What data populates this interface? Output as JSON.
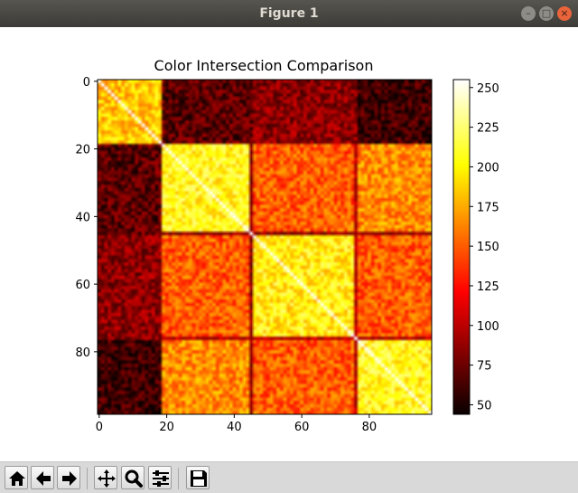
{
  "window": {
    "title": "Figure 1"
  },
  "chart_data": {
    "type": "heatmap",
    "title": "Color Intersection Comparison",
    "xlabel": "",
    "ylabel": "",
    "size": 99,
    "x_ticks": [
      "0",
      "20",
      "40",
      "60",
      "80"
    ],
    "y_ticks": [
      "0",
      "20",
      "40",
      "60",
      "80"
    ],
    "colormap": "hot",
    "vmin": 44,
    "vmax": 255,
    "colorbar_ticks": [
      "50",
      "75",
      "100",
      "125",
      "150",
      "175",
      "200",
      "225",
      "250"
    ],
    "blocks": [
      {
        "range": [
          0,
          18
        ],
        "within_value": 185
      },
      {
        "range": [
          19,
          45
        ],
        "within_value": 205
      },
      {
        "range": [
          46,
          76
        ],
        "within_value": 200
      },
      {
        "range": [
          77,
          98
        ],
        "within_value": 205
      }
    ],
    "between_values": [
      [
        0,
        70,
        85,
        60
      ],
      [
        70,
        0,
        150,
        165
      ],
      [
        85,
        150,
        0,
        150
      ],
      [
        60,
        165,
        150,
        0
      ]
    ],
    "diagonal_value": 255,
    "dark_bands": [
      {
        "index": 45,
        "value": 85
      },
      {
        "index": 76,
        "value": 100
      }
    ]
  },
  "toolbar": {
    "buttons": [
      {
        "name": "home",
        "icon": "home-icon"
      },
      {
        "name": "back",
        "icon": "back-arrow-icon"
      },
      {
        "name": "forward",
        "icon": "forward-arrow-icon"
      },
      {
        "name": "pan",
        "icon": "move-icon"
      },
      {
        "name": "zoom",
        "icon": "zoom-icon"
      },
      {
        "name": "configure",
        "icon": "sliders-icon"
      },
      {
        "name": "save",
        "icon": "save-icon"
      }
    ]
  }
}
